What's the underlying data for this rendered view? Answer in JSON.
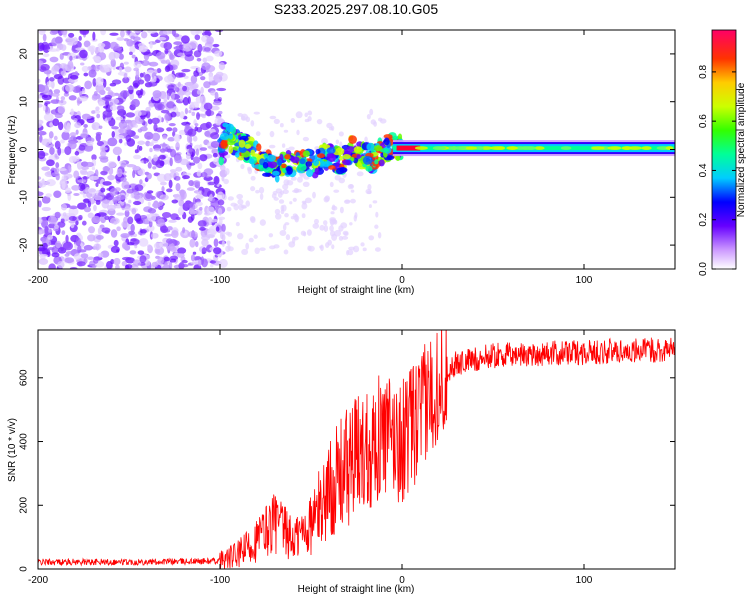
{
  "title": "S233.2025.297.08.10.G05",
  "chart_data": [
    {
      "type": "heatmap",
      "name": "spectrogram",
      "xlabel": "Height of straight line (km)",
      "ylabel": "Frequency (Hz)",
      "xlim": [
        -200,
        150
      ],
      "ylim": [
        -25,
        25
      ],
      "xticks": [
        -200,
        -100,
        0,
        100
      ],
      "yticks": [
        -20,
        -10,
        0,
        10,
        20
      ],
      "colorbar": {
        "label": "Normalized spectral amplitude",
        "range": [
          0,
          0.97
        ],
        "ticks": [
          "0.0",
          "0.2",
          "0.4",
          "0.6",
          "0.8"
        ]
      },
      "features": {
        "noise_region_x": [
          -200,
          -100
        ],
        "signal_track": [
          {
            "x": -98,
            "y": 3
          },
          {
            "x": -90,
            "y": 1
          },
          {
            "x": -85,
            "y": 0
          },
          {
            "x": -78,
            "y": -2
          },
          {
            "x": -70,
            "y": -4
          },
          {
            "x": -62,
            "y": -3
          },
          {
            "x": -55,
            "y": -2
          },
          {
            "x": -48,
            "y": -3
          },
          {
            "x": -40,
            "y": -1
          },
          {
            "x": -33,
            "y": -3
          },
          {
            "x": -28,
            "y": 0
          },
          {
            "x": -22,
            "y": -1
          },
          {
            "x": -16,
            "y": -2
          },
          {
            "x": -10,
            "y": 0
          },
          {
            "x": -5,
            "y": 1
          },
          {
            "x": 0,
            "y": 0
          },
          {
            "x": 10,
            "y": 0
          },
          {
            "x": 50,
            "y": 0
          },
          {
            "x": 100,
            "y": 0
          },
          {
            "x": 150,
            "y": 0.5
          }
        ]
      }
    },
    {
      "type": "line",
      "name": "snr",
      "xlabel": "Height of straight line (km)",
      "ylabel": "SNR (10 * v/v)",
      "xlim": [
        -200,
        150
      ],
      "ylim": [
        0,
        750
      ],
      "xticks": [
        -200,
        -100,
        0,
        100
      ],
      "yticks": [
        0,
        200,
        400,
        600
      ],
      "color": "#ff0000",
      "envelope": [
        {
          "x": -200,
          "y": 22
        },
        {
          "x": -150,
          "y": 22
        },
        {
          "x": -100,
          "y": 25
        },
        {
          "x": -90,
          "y": 45
        },
        {
          "x": -80,
          "y": 90
        },
        {
          "x": -70,
          "y": 150
        },
        {
          "x": -60,
          "y": 90
        },
        {
          "x": -50,
          "y": 140
        },
        {
          "x": -40,
          "y": 250
        },
        {
          "x": -30,
          "y": 320
        },
        {
          "x": -20,
          "y": 380
        },
        {
          "x": -10,
          "y": 420
        },
        {
          "x": 0,
          "y": 400
        },
        {
          "x": 10,
          "y": 480
        },
        {
          "x": 20,
          "y": 600
        },
        {
          "x": 30,
          "y": 645
        },
        {
          "x": 50,
          "y": 670
        },
        {
          "x": 100,
          "y": 680
        },
        {
          "x": 150,
          "y": 690
        }
      ]
    }
  ]
}
